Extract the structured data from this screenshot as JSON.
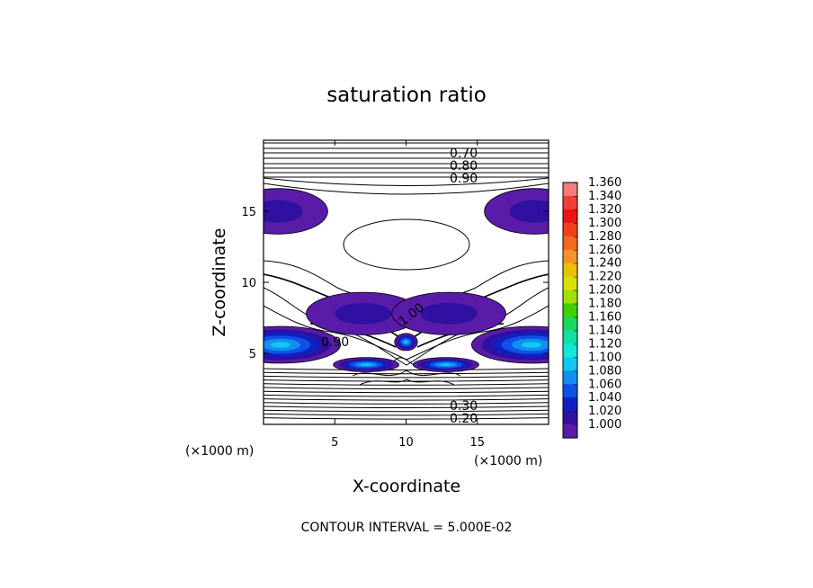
{
  "chart_data": {
    "type": "heatmap",
    "title": "saturation ratio",
    "xlabel": "X-coordinate",
    "ylabel": "Z-coordinate",
    "x_unit_left": "(×1000 m)",
    "x_unit_right": "(×1000 m)",
    "xlim": [
      0,
      20
    ],
    "ylim": [
      0,
      20
    ],
    "x_ticks": [
      "5",
      "10",
      "15"
    ],
    "y_ticks": [
      "5",
      "10",
      "15"
    ],
    "footer": "CONTOUR INTERVAL = 5.000E-02",
    "contour_labels": [
      "0.70",
      "0.80",
      "0.90",
      "1.00",
      "0.90",
      "0.20",
      "0.30"
    ],
    "colorbar": {
      "min": 1.0,
      "max": 1.36,
      "step": 0.02,
      "labels": [
        "1.360",
        "1.340",
        "1.320",
        "1.300",
        "1.280",
        "1.260",
        "1.240",
        "1.220",
        "1.200",
        "1.180",
        "1.160",
        "1.140",
        "1.120",
        "1.100",
        "1.080",
        "1.060",
        "1.040",
        "1.020",
        "1.000"
      ],
      "colors": [
        "#f47c7c",
        "#f43c3c",
        "#ee1414",
        "#f04020",
        "#f46820",
        "#f49428",
        "#ecc000",
        "#d8e000",
        "#a0e000",
        "#40d000",
        "#18d860",
        "#10e0a0",
        "#10e8d8",
        "#10c8f0",
        "#1090f0",
        "#1050e8",
        "#1020c0",
        "#3010a0",
        "#5a1ca8"
      ]
    },
    "moist_regions": [
      {
        "cx": 1.0,
        "cz": 15.0,
        "rx": 3.5,
        "rz": 1.6,
        "peak": 1.04
      },
      {
        "cx": 19.0,
        "cz": 15.0,
        "rx": 3.5,
        "rz": 1.6,
        "peak": 1.04
      },
      {
        "cx": 7.0,
        "cz": 7.8,
        "rx": 4.0,
        "rz": 1.5,
        "peak": 1.04
      },
      {
        "cx": 13.0,
        "cz": 7.8,
        "rx": 4.0,
        "rz": 1.5,
        "peak": 1.04
      },
      {
        "cx": 1.2,
        "cz": 5.6,
        "rx": 4.2,
        "rz": 1.3,
        "peak": 1.12
      },
      {
        "cx": 18.8,
        "cz": 5.6,
        "rx": 4.2,
        "rz": 1.3,
        "peak": 1.12
      },
      {
        "cx": 7.2,
        "cz": 4.2,
        "rx": 2.3,
        "rz": 0.5,
        "peak": 1.12
      },
      {
        "cx": 12.8,
        "cz": 4.2,
        "rx": 2.3,
        "rz": 0.5,
        "peak": 1.12
      },
      {
        "cx": 10.0,
        "cz": 5.8,
        "rx": 0.8,
        "rz": 0.6,
        "peak": 1.12
      }
    ]
  }
}
